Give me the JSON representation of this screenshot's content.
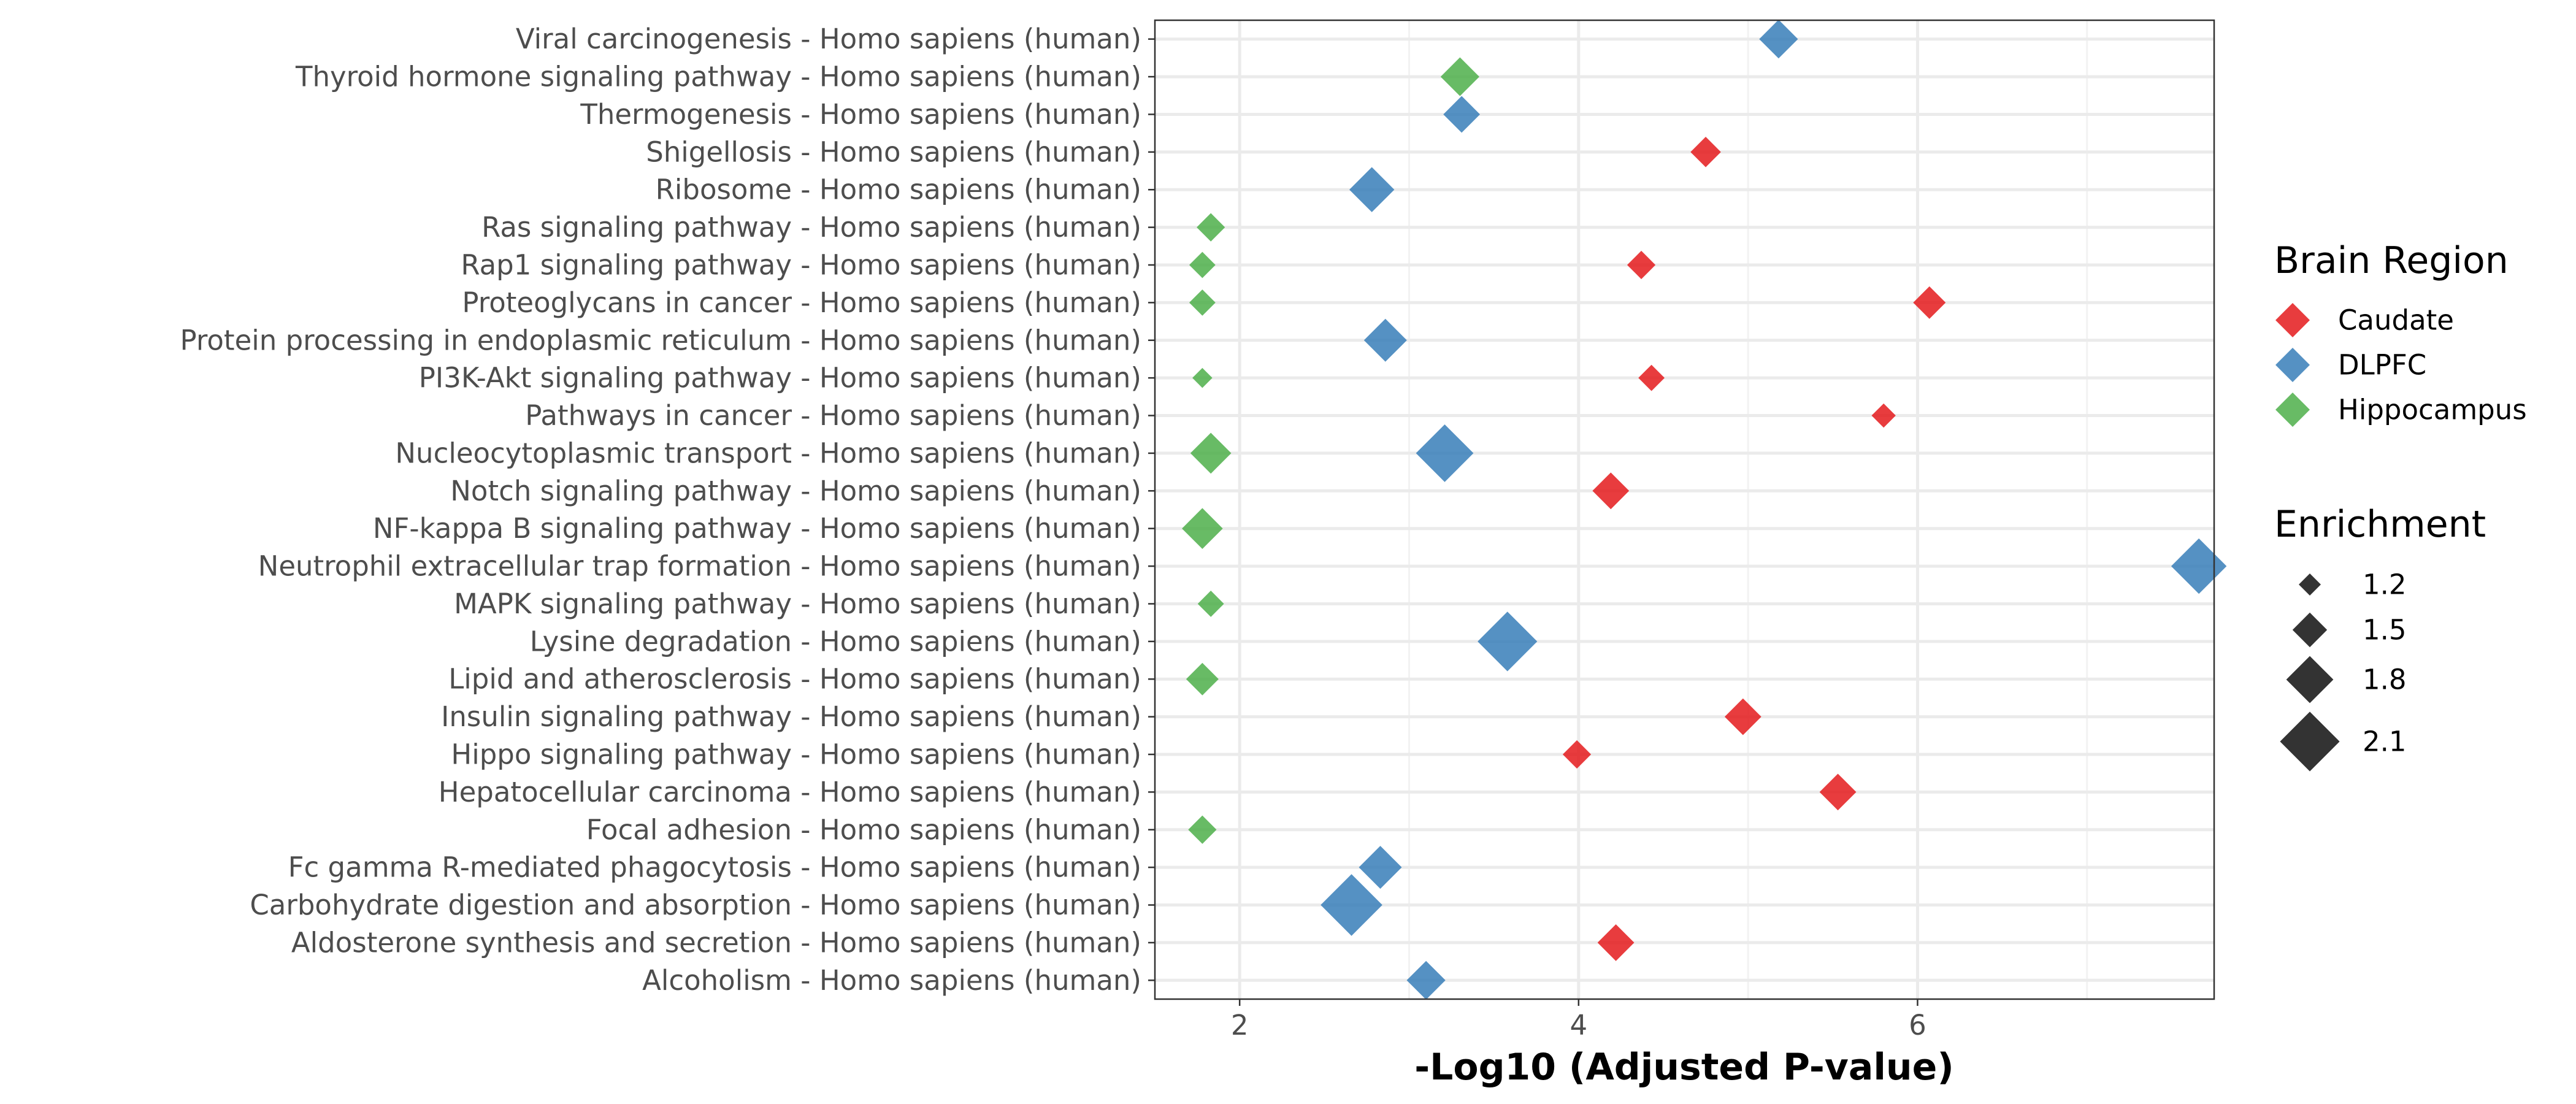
{
  "chart_data": {
    "type": "scatter",
    "xlabel": "-Log10 (Adjusted P-value)",
    "ylabel": "",
    "xlim": [
      1.5,
      7.75
    ],
    "x_ticks": [
      2,
      4,
      6
    ],
    "grid": true,
    "legend_position": "right",
    "categories": [
      "Viral carcinogenesis - Homo sapiens (human)",
      "Thyroid hormone signaling pathway - Homo sapiens (human)",
      "Thermogenesis - Homo sapiens (human)",
      "Shigellosis - Homo sapiens (human)",
      "Ribosome - Homo sapiens (human)",
      "Ras signaling pathway - Homo sapiens (human)",
      "Rap1 signaling pathway - Homo sapiens (human)",
      "Proteoglycans in cancer - Homo sapiens (human)",
      "Protein processing in endoplasmic reticulum - Homo sapiens (human)",
      "PI3K-Akt signaling pathway - Homo sapiens (human)",
      "Pathways in cancer - Homo sapiens (human)",
      "Nucleocytoplasmic transport - Homo sapiens (human)",
      "Notch signaling pathway - Homo sapiens (human)",
      "NF-kappa B signaling pathway - Homo sapiens (human)",
      "Neutrophil extracellular trap formation - Homo sapiens (human)",
      "MAPK signaling pathway - Homo sapiens (human)",
      "Lysine degradation - Homo sapiens (human)",
      "Lipid and atherosclerosis - Homo sapiens (human)",
      "Insulin signaling pathway - Homo sapiens (human)",
      "Hippo signaling pathway - Homo sapiens (human)",
      "Hepatocellular carcinoma - Homo sapiens (human)",
      "Focal adhesion - Homo sapiens (human)",
      "Fc gamma R-mediated phagocytosis - Homo sapiens (human)",
      "Carbohydrate digestion and absorption - Homo sapiens (human)",
      "Aldosterone synthesis and secretion - Homo sapiens (human)",
      "Alcoholism - Homo sapiens (human)"
    ],
    "color_legend": {
      "title": "Brain Region",
      "items": [
        {
          "label": "Caudate",
          "color": "#e41a1c"
        },
        {
          "label": "DLPFC",
          "color": "#377eb8"
        },
        {
          "label": "Hippocampus",
          "color": "#4daf4a"
        }
      ]
    },
    "size_legend": {
      "title": "Enrichment",
      "items": [
        {
          "label": "1.2",
          "value": 1.2
        },
        {
          "label": "1.5",
          "value": 1.5
        },
        {
          "label": "1.8",
          "value": 1.8
        },
        {
          "label": "2.1",
          "value": 2.1
        }
      ]
    },
    "series": [
      {
        "name": "Caudate",
        "points": [
          {
            "category": "Shigellosis - Homo sapiens (human)",
            "x": 4.75,
            "enrichment": 1.4
          },
          {
            "category": "Rap1 signaling pathway - Homo sapiens (human)",
            "x": 4.37,
            "enrichment": 1.35
          },
          {
            "category": "Proteoglycans in cancer - Homo sapiens (human)",
            "x": 6.07,
            "enrichment": 1.45
          },
          {
            "category": "PI3K-Akt signaling pathway - Homo sapiens (human)",
            "x": 4.43,
            "enrichment": 1.3
          },
          {
            "category": "Pathways in cancer - Homo sapiens (human)",
            "x": 5.8,
            "enrichment": 1.25
          },
          {
            "category": "Notch signaling pathway - Homo sapiens (human)",
            "x": 4.19,
            "enrichment": 1.55
          },
          {
            "category": "Insulin signaling pathway - Homo sapiens (human)",
            "x": 4.97,
            "enrichment": 1.55
          },
          {
            "category": "Hippo signaling pathway - Homo sapiens (human)",
            "x": 3.99,
            "enrichment": 1.35
          },
          {
            "category": "Hepatocellular carcinoma - Homo sapiens (human)",
            "x": 5.53,
            "enrichment": 1.55
          },
          {
            "category": "Aldosterone synthesis and secretion - Homo sapiens (human)",
            "x": 4.22,
            "enrichment": 1.55
          }
        ]
      },
      {
        "name": "DLPFC",
        "points": [
          {
            "category": "Viral carcinogenesis - Homo sapiens (human)",
            "x": 5.18,
            "enrichment": 1.6
          },
          {
            "category": "Thermogenesis - Homo sapiens (human)",
            "x": 3.31,
            "enrichment": 1.55
          },
          {
            "category": "Ribosome - Homo sapiens (human)",
            "x": 2.78,
            "enrichment": 1.75
          },
          {
            "category": "Protein processing in endoplasmic reticulum - Homo sapiens (human)",
            "x": 2.86,
            "enrichment": 1.7
          },
          {
            "category": "Nucleocytoplasmic transport - Homo sapiens (human)",
            "x": 3.21,
            "enrichment": 2.05
          },
          {
            "category": "Neutrophil extracellular trap formation - Homo sapiens (human)",
            "x": 7.66,
            "enrichment": 2.0
          },
          {
            "category": "Lysine degradation - Homo sapiens (human)",
            "x": 3.58,
            "enrichment": 2.1
          },
          {
            "category": "Fc gamma R-mediated phagocytosis - Homo sapiens (human)",
            "x": 2.83,
            "enrichment": 1.7
          },
          {
            "category": "Carbohydrate digestion and absorption - Homo sapiens (human)",
            "x": 2.66,
            "enrichment": 2.15
          },
          {
            "category": "Alcoholism - Homo sapiens (human)",
            "x": 3.1,
            "enrichment": 1.6
          }
        ]
      },
      {
        "name": "Hippocampus",
        "points": [
          {
            "category": "Thyroid hormone signaling pathway - Homo sapiens (human)",
            "x": 3.3,
            "enrichment": 1.6
          },
          {
            "category": "Ras signaling pathway - Homo sapiens (human)",
            "x": 1.83,
            "enrichment": 1.35
          },
          {
            "category": "Rap1 signaling pathway - Homo sapiens (human)",
            "x": 1.78,
            "enrichment": 1.3
          },
          {
            "category": "Proteoglycans in cancer - Homo sapiens (human)",
            "x": 1.78,
            "enrichment": 1.3
          },
          {
            "category": "PI3K-Akt signaling pathway - Homo sapiens (human)",
            "x": 1.78,
            "enrichment": 1.15
          },
          {
            "category": "Nucleocytoplasmic transport - Homo sapiens (human)",
            "x": 1.83,
            "enrichment": 1.65
          },
          {
            "category": "NF-kappa B signaling pathway - Homo sapiens (human)",
            "x": 1.78,
            "enrichment": 1.65
          },
          {
            "category": "MAPK signaling pathway - Homo sapiens (human)",
            "x": 1.83,
            "enrichment": 1.3
          },
          {
            "category": "Lipid and atherosclerosis - Homo sapiens (human)",
            "x": 1.78,
            "enrichment": 1.45
          },
          {
            "category": "Focal adhesion - Homo sapiens (human)",
            "x": 1.78,
            "enrichment": 1.35
          }
        ]
      }
    ]
  }
}
